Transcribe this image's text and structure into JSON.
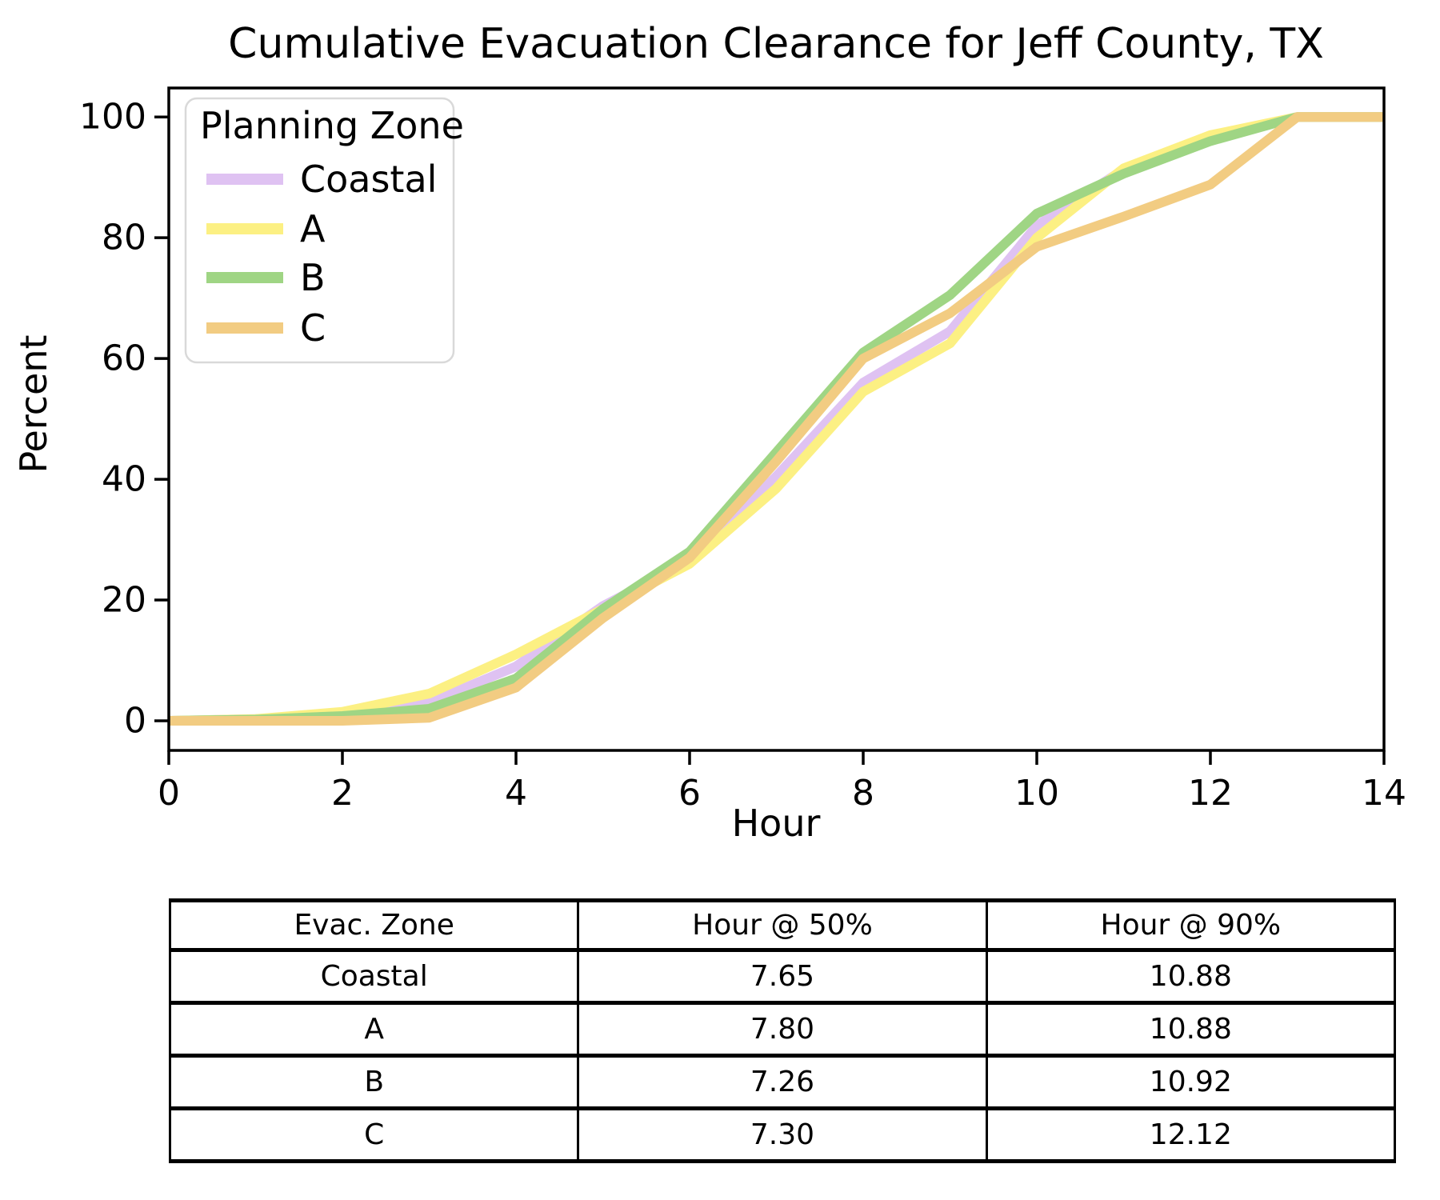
{
  "chart_data": {
    "type": "line",
    "title": "Cumulative Evacuation Clearance for Jeff County, TX",
    "xlabel": "Hour",
    "ylabel": "Percent",
    "xlim": [
      0,
      14
    ],
    "ylim": [
      -4.9,
      104.8
    ],
    "xticks": [
      0,
      2,
      4,
      6,
      8,
      10,
      12,
      14
    ],
    "yticks": [
      0,
      20,
      40,
      60,
      80,
      100
    ],
    "grid": false,
    "legend_title": "Planning Zone",
    "legend_position": "upper left",
    "x": [
      0,
      1,
      2,
      3,
      4,
      5,
      6,
      7,
      8,
      9,
      10,
      11,
      12,
      13,
      14
    ],
    "series": [
      {
        "name": "Coastal",
        "color": "#dfc2f2",
        "values": [
          0,
          0.3,
          0.9,
          3,
          9,
          19,
          26.5,
          40.5,
          56,
          64.5,
          82,
          91.3,
          96.5,
          100,
          100
        ]
      },
      {
        "name": "A",
        "color": "#fcf083",
        "values": [
          0,
          0.3,
          1.5,
          4.5,
          11,
          18.5,
          26,
          38.5,
          54.5,
          62.5,
          80,
          91.5,
          97,
          100,
          100
        ]
      },
      {
        "name": "B",
        "color": "#9fd584",
        "values": [
          0,
          0.2,
          0.8,
          2,
          7,
          18.5,
          28,
          44.5,
          61,
          70.5,
          84,
          90.6,
          96,
          100,
          100
        ]
      },
      {
        "name": "C",
        "color": "#f2cc82",
        "values": [
          0,
          0,
          0,
          0.5,
          5.5,
          17,
          27,
          43,
          60,
          67.5,
          78.5,
          83.5,
          88.8,
          100,
          100
        ]
      }
    ]
  },
  "table": {
    "headers": [
      "Evac. Zone",
      "Hour @ 50%",
      "Hour @ 90%"
    ],
    "rows": [
      {
        "zone": "Coastal",
        "h50": "7.65",
        "h90": "10.88"
      },
      {
        "zone": "A",
        "h50": "7.80",
        "h90": "10.88"
      },
      {
        "zone": "B",
        "h50": "7.26",
        "h90": "10.92"
      },
      {
        "zone": "C",
        "h50": "7.30",
        "h90": "12.12"
      }
    ]
  }
}
